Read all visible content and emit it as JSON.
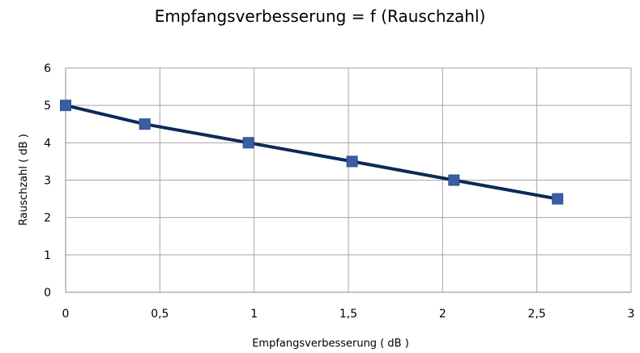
{
  "chart_data": {
    "type": "line",
    "title": "Empfangsverbesserung = f (Rauschzahl)",
    "xlabel": "Empfangsverbesserung ( dB )",
    "ylabel": "Rauschzahl ( dB )",
    "xlim": [
      0,
      3
    ],
    "ylim": [
      0,
      6
    ],
    "x_ticks": [
      "0",
      "0,5",
      "1",
      "1,5",
      "2",
      "2,5",
      "3"
    ],
    "y_ticks": [
      "0",
      "1",
      "2",
      "3",
      "4",
      "5",
      "6"
    ],
    "grid": true,
    "series": [
      {
        "color": "#0c2a5a",
        "marker_color": "#3b5ea3",
        "x": [
          0,
          0.42,
          0.97,
          1.52,
          2.06,
          2.61
        ],
        "y": [
          5,
          4.5,
          4,
          3.5,
          3,
          2.5
        ]
      }
    ]
  }
}
